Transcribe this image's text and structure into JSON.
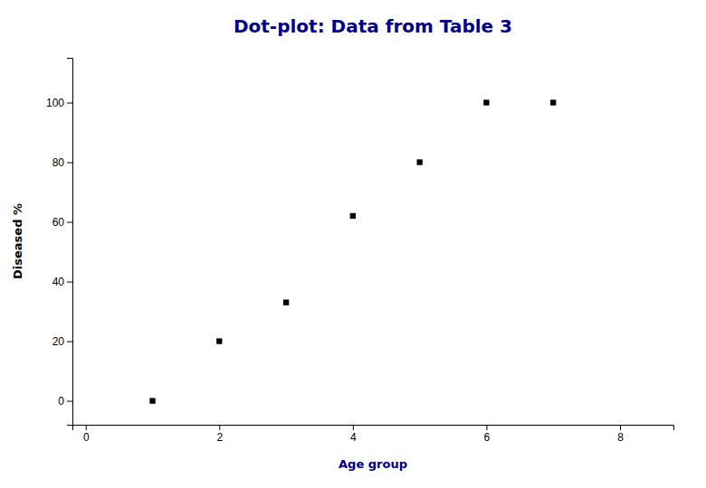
{
  "chart_data": {
    "type": "scatter",
    "title": "Dot-plot: Data from Table 3",
    "xlabel": "Age group",
    "ylabel": "Diseased %",
    "x": [
      1,
      2,
      3,
      4,
      5,
      6,
      7
    ],
    "values": [
      0,
      20,
      33,
      62,
      80,
      100,
      100
    ],
    "color": "#000000",
    "marker": "square",
    "xlim": [
      -0.2,
      8.8
    ],
    "ylim": [
      -8,
      115
    ],
    "xticks": [
      0,
      2,
      4,
      6,
      8
    ],
    "yticks": [
      0,
      20,
      40,
      60,
      80,
      100
    ],
    "grid": false
  }
}
